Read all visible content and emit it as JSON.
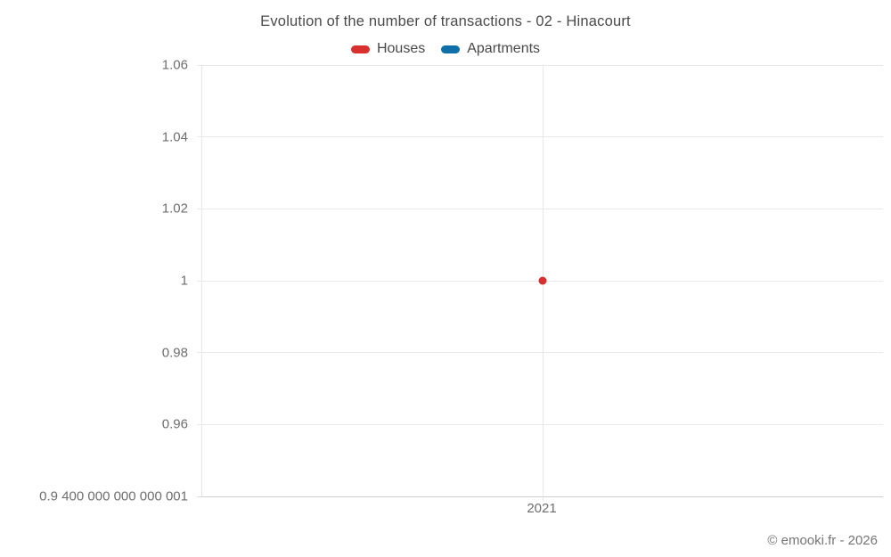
{
  "title": "Evolution of the number of transactions - 02 - Hinacourt",
  "attribution": "© emooki.fr - 2026",
  "legend": {
    "items": [
      {
        "label": "Houses",
        "color": "#d7302f"
      },
      {
        "label": "Apartments",
        "color": "#0f6fa8"
      }
    ]
  },
  "chart_data": {
    "type": "line",
    "title": "Evolution of the number of transactions - 02 - Hinacourt",
    "x_categories": [
      "2021"
    ],
    "series": [
      {
        "name": "Houses",
        "color": "#d7302f",
        "values": [
          1
        ]
      },
      {
        "name": "Apartments",
        "color": "#0f6fa8",
        "values": [
          null
        ]
      }
    ],
    "y_ticks": [
      {
        "label": "0.9 400 000 000 000 001",
        "value": 0.9400000000000001
      },
      {
        "label": "0.96",
        "value": 0.96
      },
      {
        "label": "0.98",
        "value": 0.98
      },
      {
        "label": "1",
        "value": 1
      },
      {
        "label": "1.02",
        "value": 1.02
      },
      {
        "label": "1.04",
        "value": 1.04
      },
      {
        "label": "1.06",
        "value": 1.06
      }
    ],
    "y_min": 0.9400000000000001,
    "y_max": 1.06,
    "xlabel": "",
    "ylabel": "",
    "grid": true,
    "legend_position": "top"
  }
}
